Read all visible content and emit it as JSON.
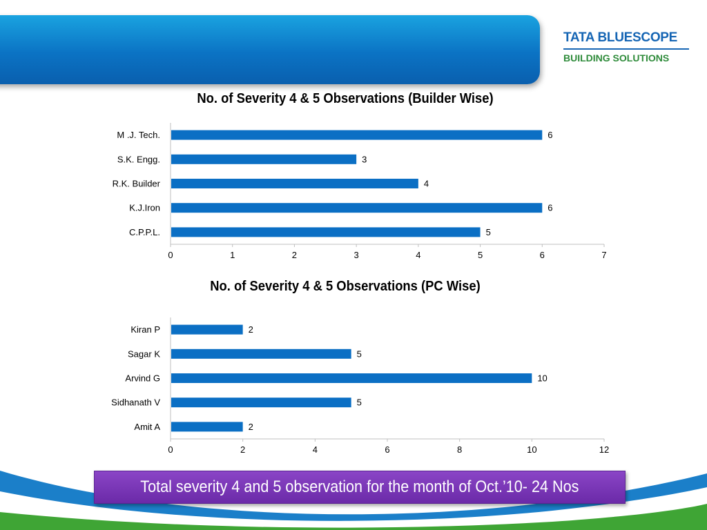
{
  "logo": {
    "brand": "TATA BLUESCOPE",
    "subtitle": "BUILDING SOLUTIONS"
  },
  "colors": {
    "bar": "#0b6fc4",
    "banner": "#0b73c4",
    "footer_box": "#7b35b8",
    "wave_blue": "#1b7fc9",
    "wave_green": "#3fa535"
  },
  "chart_data": [
    {
      "type": "bar",
      "orientation": "horizontal",
      "title": "No. of  Severity 4 & 5 Observations (Builder  Wise)",
      "categories": [
        "M .J. Tech.",
        "S.K. Engg.",
        "R.K. Builder",
        "K.J.Iron",
        "C.P.P.L."
      ],
      "values": [
        6,
        3,
        4,
        6,
        5
      ],
      "xlim": [
        0,
        7
      ],
      "xticks": [
        0,
        1,
        2,
        3,
        4,
        5,
        6,
        7
      ],
      "data_labels": true,
      "grid": false,
      "legend": "none"
    },
    {
      "type": "bar",
      "orientation": "horizontal",
      "title": "No. of  Severity 4 & 5 Observations (PC  Wise)",
      "categories": [
        "Kiran P",
        "Sagar K",
        "Arvind G",
        "Sidhanath V",
        "Amit A"
      ],
      "values": [
        2,
        5,
        10,
        5,
        2
      ],
      "xlim": [
        0,
        12
      ],
      "xticks": [
        0,
        2,
        4,
        6,
        8,
        10,
        12
      ],
      "data_labels": true,
      "grid": false,
      "legend": "none"
    }
  ],
  "footer": {
    "text": "Total severity 4 and 5 observation for the month of  Oct.’10- 24 Nos"
  }
}
